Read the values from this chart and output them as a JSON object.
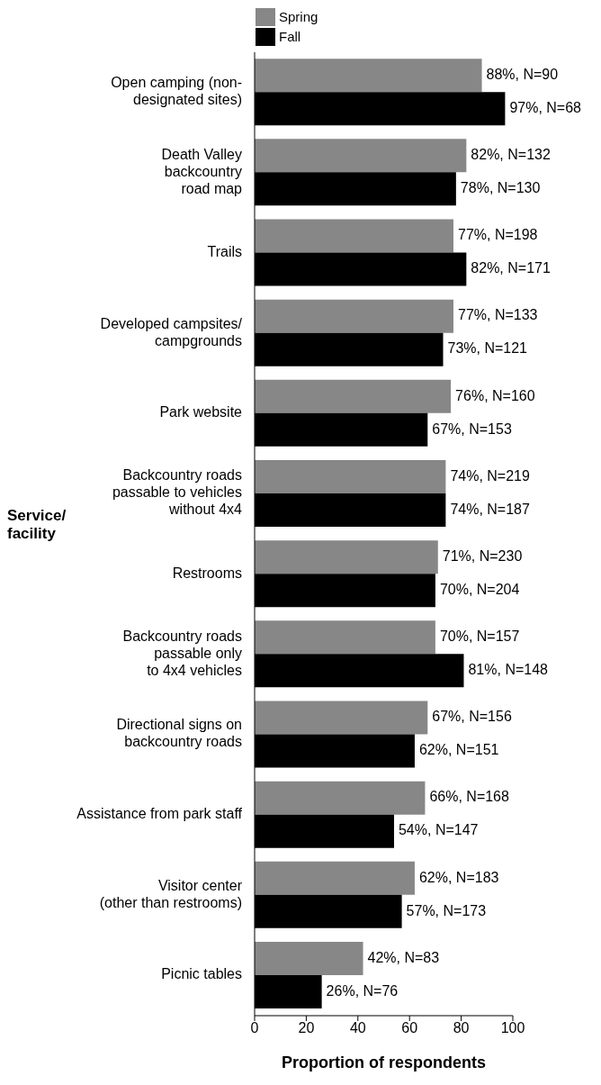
{
  "chart_data": {
    "type": "bar",
    "orientation": "horizontal",
    "xlabel": "Proportion of respondents",
    "ylabel": "Service/\nfacility",
    "categories": [
      "Open camping (non-\ndesignated sites)",
      "Death Valley\nbackcountry\nroad map",
      "Trails",
      "Developed campsites/\ncampgrounds",
      "Park website",
      "Backcountry roads\npassable to vehicles\nwithout 4x4",
      "Restrooms",
      "Backcountry roads\npassable only\nto 4x4 vehicles",
      "Directional signs on\nbackcountry roads",
      "Assistance from park staff",
      "Visitor center\n(other than restrooms)",
      "Picnic tables"
    ],
    "series": [
      {
        "name": "Spring",
        "color": "#878787",
        "values": [
          88,
          82,
          77,
          77,
          76,
          74,
          71,
          70,
          67,
          66,
          62,
          42
        ],
        "value_labels": [
          "88%, N=90",
          "82%, N=132",
          "77%, N=198",
          "77%, N=133",
          "76%, N=160",
          "74%, N=219",
          "71%, N=230",
          "70%, N=157",
          "67%, N=156",
          "66%, N=168",
          "62%, N=183",
          "42%, N=83"
        ]
      },
      {
        "name": "Fall",
        "color": "#000000",
        "values": [
          97,
          78,
          82,
          73,
          67,
          74,
          70,
          81,
          62,
          54,
          57,
          26
        ],
        "value_labels": [
          "97%, N=68",
          "78%, N=130",
          "82%, N=171",
          "73%, N=121",
          "67%, N=153",
          "74%, N=187",
          "70%, N=204",
          "81%, N=148",
          "62%, N=151",
          "54%, N=147",
          "57%, N=173",
          "26%, N=76"
        ]
      }
    ],
    "xlim": [
      0,
      100
    ],
    "xticks": [
      0,
      20,
      40,
      60,
      80,
      100
    ],
    "grid": false,
    "legend": "top left"
  }
}
